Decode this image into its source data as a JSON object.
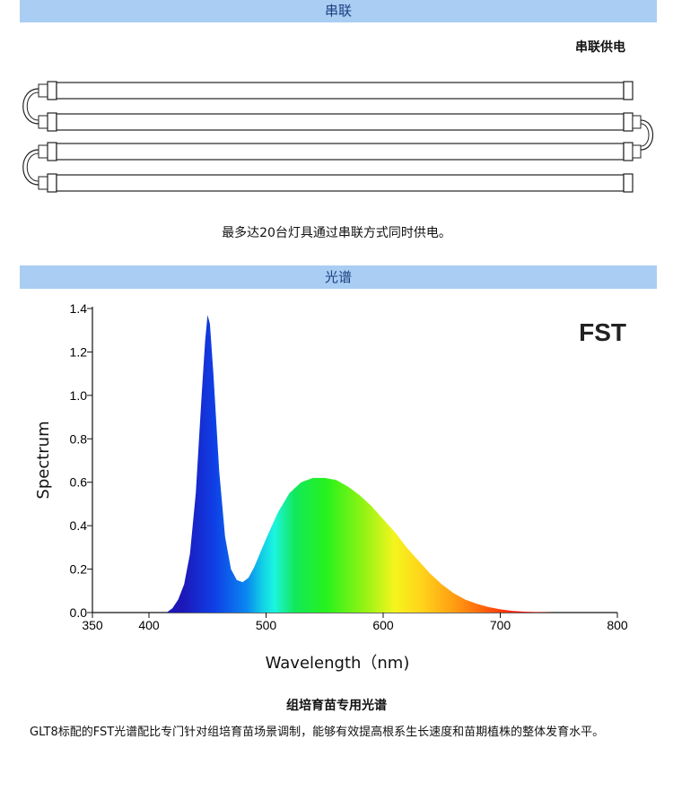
{
  "section_series": {
    "band_label": "串联",
    "title": "串联供电",
    "note": "最多达20台灯具通过串联方式同时供电。",
    "tube_count": 4
  },
  "section_spectrum": {
    "band_label": "光谱",
    "brand_label": "FST",
    "subtitle": "组培育苗专用光谱",
    "description": "GLT8标配的FST光谱配比专门针对组培育苗场景调制，能够有效提高根系生长速度和苗期植株的整体发育水平。"
  },
  "colors": {
    "band_bg": "#a9cdf3",
    "band_text": "#1b3f80"
  },
  "chart_data": {
    "type": "area",
    "xlabel": "Wavelength（nm)",
    "ylabel": "Spectrum",
    "xlim": [
      350,
      800
    ],
    "ylim": [
      0,
      1.4
    ],
    "x_ticks": [
      "350",
      "400",
      "500",
      "600",
      "700",
      "800"
    ],
    "y_ticks": [
      "0.0",
      "0.2",
      "0.4",
      "0.6",
      "0.8",
      "1.0",
      "1.2",
      "1.4"
    ],
    "grid": false,
    "x": [
      415,
      420,
      425,
      430,
      435,
      440,
      445,
      448,
      450,
      452,
      455,
      460,
      465,
      470,
      475,
      480,
      485,
      490,
      500,
      510,
      520,
      530,
      540,
      550,
      560,
      570,
      580,
      590,
      600,
      610,
      620,
      630,
      640,
      650,
      660,
      670,
      680,
      690,
      700,
      710,
      720,
      730,
      740,
      745
    ],
    "y": [
      0.0,
      0.02,
      0.06,
      0.13,
      0.27,
      0.55,
      1.0,
      1.25,
      1.37,
      1.33,
      1.1,
      0.65,
      0.35,
      0.2,
      0.15,
      0.14,
      0.16,
      0.21,
      0.34,
      0.46,
      0.55,
      0.6,
      0.62,
      0.62,
      0.61,
      0.58,
      0.54,
      0.49,
      0.43,
      0.37,
      0.3,
      0.24,
      0.18,
      0.13,
      0.09,
      0.06,
      0.04,
      0.025,
      0.015,
      0.008,
      0.004,
      0.002,
      0.001,
      0.0
    ]
  }
}
